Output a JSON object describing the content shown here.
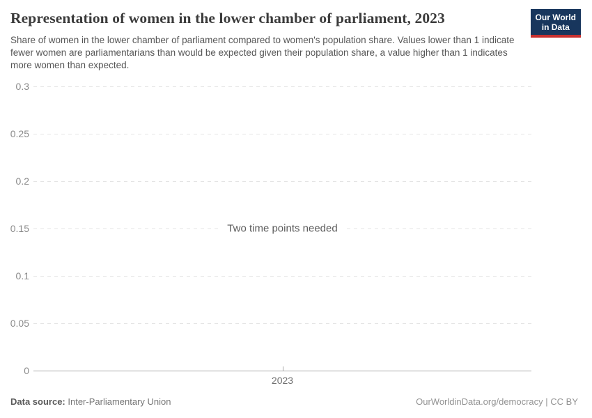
{
  "chart_data": {
    "type": "line",
    "title": "Representation of women in the lower chamber of parliament, 2023",
    "subtitle": "Share of women in the lower chamber of parliament compared to women's population share. Values lower than 1 indicate fewer women are parliamentarians than would be expected given their population share, a value higher than 1 indicates more women than expected.",
    "series": [],
    "empty_message": "Two time points needed",
    "x_ticks": [
      "2023"
    ],
    "y_ticks": [
      {
        "value": 0,
        "label": "0"
      },
      {
        "value": 0.05,
        "label": "0.05"
      },
      {
        "value": 0.1,
        "label": "0.1"
      },
      {
        "value": 0.15,
        "label": "0.15"
      },
      {
        "value": 0.2,
        "label": "0.2"
      },
      {
        "value": 0.25,
        "label": "0.25"
      },
      {
        "value": 0.3,
        "label": "0.3"
      }
    ],
    "ylim": [
      0,
      0.3
    ],
    "grid": "horizontal-dashed",
    "legend": "none"
  },
  "logo": {
    "line1": "Our World",
    "line2": "in Data",
    "bg_color": "#18365d",
    "accent_color": "#c7302f"
  },
  "footer": {
    "source_label": "Data source:",
    "source_value": "Inter-Parliamentary Union",
    "attribution": "OurWorldinData.org/democracy | CC BY"
  }
}
